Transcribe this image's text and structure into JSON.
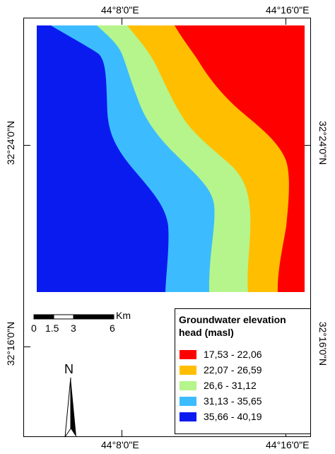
{
  "coordinates": {
    "lon_left": "44°8'0\"E",
    "lon_right": "44°16'0\"E",
    "lat_upper": "32°24'0\"N",
    "lat_lower": "32°16'0\"N"
  },
  "scale_bar": {
    "unit": "Km",
    "labels": [
      "0",
      "1.5",
      "3",
      "6"
    ]
  },
  "north_arrow": {
    "label": "N"
  },
  "legend": {
    "title": "Groundwater elevation head (masl)",
    "classes": [
      {
        "label": "17,53 - 22,06",
        "color": "#ff0000"
      },
      {
        "label": "22,07 - 26,59",
        "color": "#ffbf00"
      },
      {
        "label": "26,6 - 31,12",
        "color": "#b5f58c"
      },
      {
        "label": "31,13 - 35,65",
        "color": "#3cbcff"
      },
      {
        "label": "35,66 - 40,19",
        "color": "#0a1bf0"
      }
    ]
  }
}
